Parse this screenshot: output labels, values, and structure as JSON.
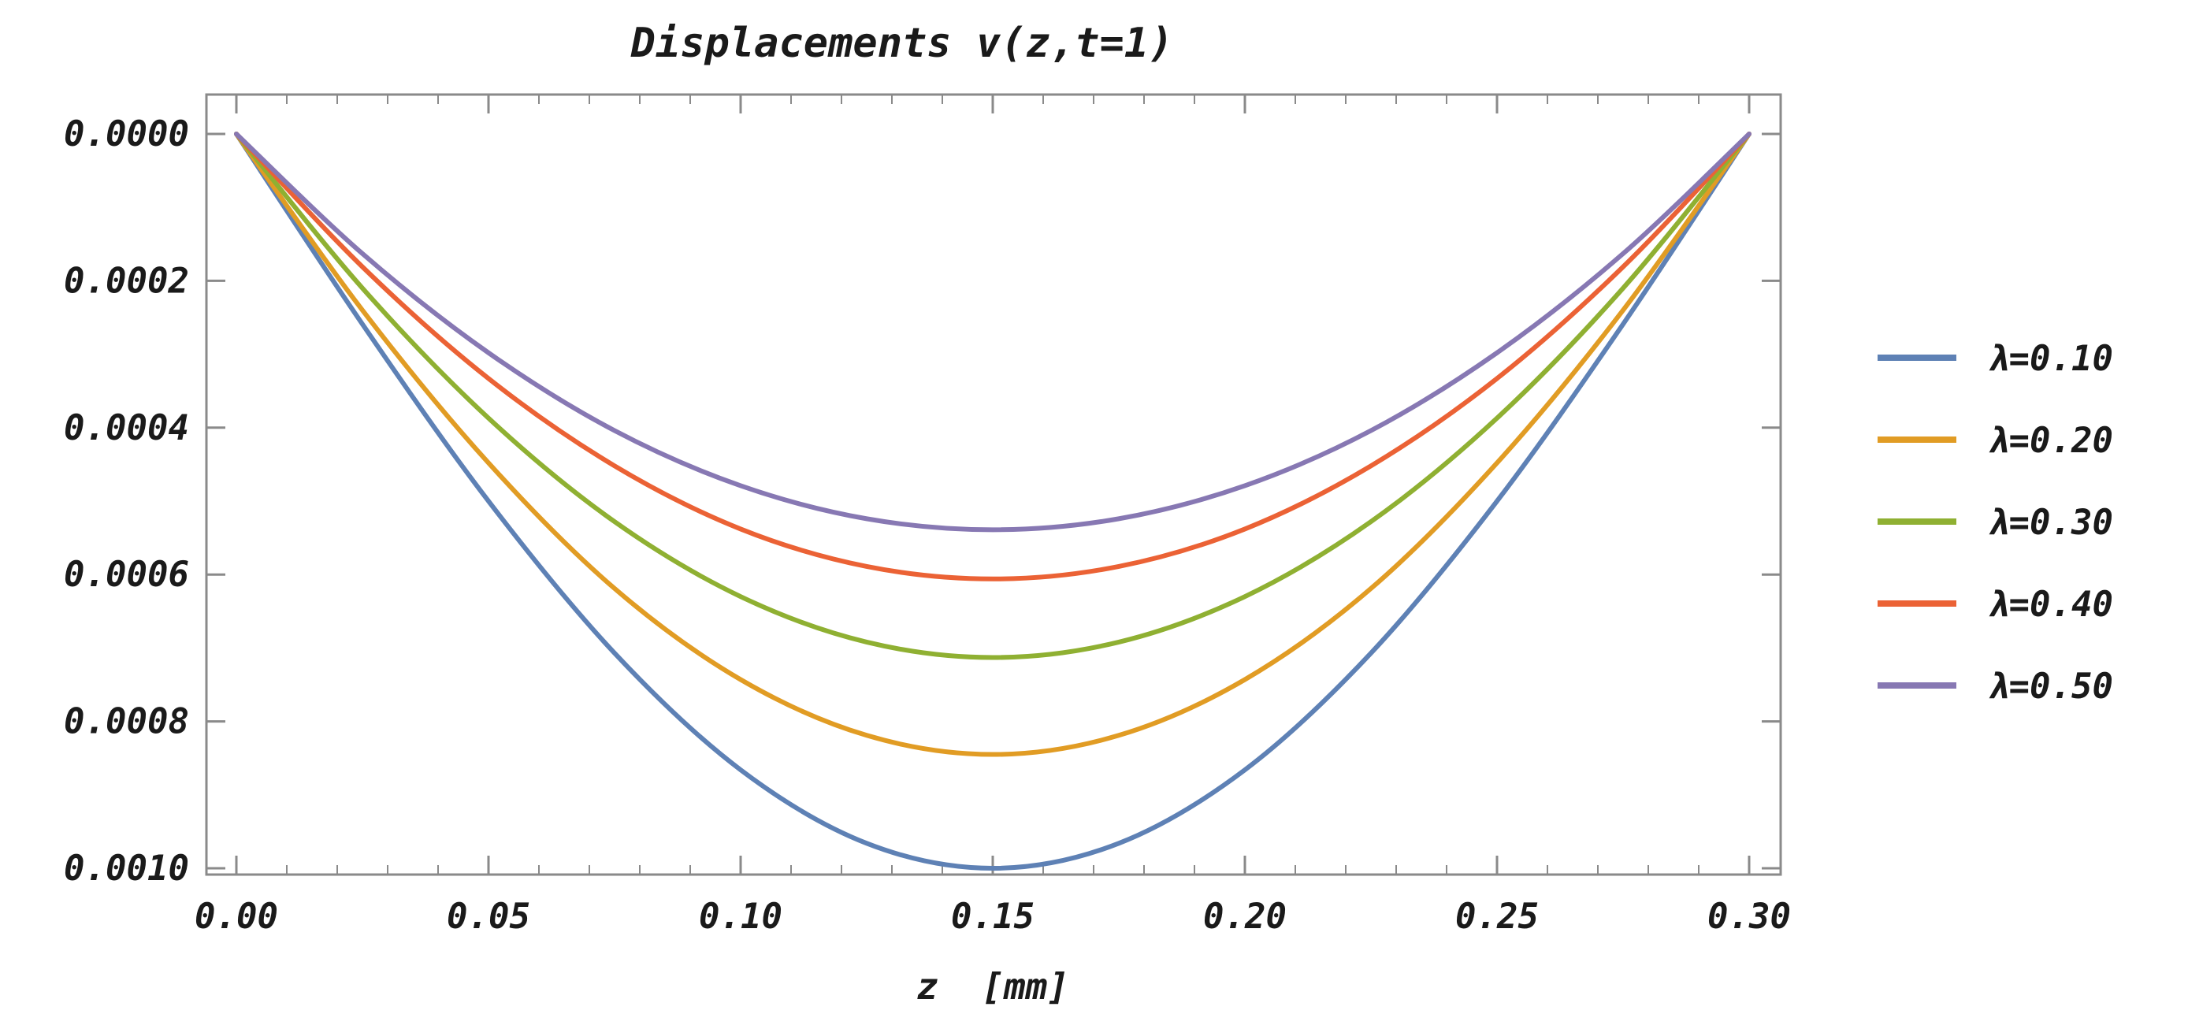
{
  "chart_data": {
    "type": "line",
    "title": "Displacements v(z,t=1)",
    "xlabel": "z  [mm]",
    "ylabel": "",
    "xlim": [
      0.0,
      0.3
    ],
    "ylim": [
      0.0,
      0.001
    ],
    "y_reversed": true,
    "grid": false,
    "legend_position": "right",
    "x_ticks": [
      "0.00",
      "0.05",
      "0.10",
      "0.15",
      "0.20",
      "0.25",
      "0.30"
    ],
    "y_ticks": [
      "0.0000",
      "0.0002",
      "0.0004",
      "0.0006",
      "0.0008",
      "0.0010"
    ],
    "x": [
      0.0,
      0.025,
      0.05,
      0.075,
      0.1,
      0.125,
      0.15,
      0.175,
      0.2,
      0.225,
      0.25,
      0.275,
      0.3
    ],
    "series": [
      {
        "name": "λ=0.10",
        "color": "#5E81B5",
        "values": [
          0.0,
          0.000259,
          0.0005,
          0.000707,
          0.000866,
          0.000966,
          0.001,
          0.000966,
          0.000866,
          0.000707,
          0.0005,
          0.000259,
          0.0
        ]
      },
      {
        "name": "λ=0.20",
        "color": "#E19C24",
        "values": [
          0.0,
          0.00024,
          0.000448,
          0.000619,
          0.000743,
          0.000819,
          0.000845,
          0.000819,
          0.000743,
          0.000619,
          0.000448,
          0.00024,
          0.0
        ]
      },
      {
        "name": "λ=0.30",
        "color": "#8FB032",
        "values": [
          0.0,
          0.00021,
          0.000387,
          0.000528,
          0.00063,
          0.000692,
          0.000713,
          0.000692,
          0.00063,
          0.000528,
          0.000387,
          0.00021,
          0.0
        ]
      },
      {
        "name": "λ=0.40",
        "color": "#EB6235",
        "values": [
          0.0,
          0.000181,
          0.000333,
          0.000452,
          0.000538,
          0.000589,
          0.000606,
          0.000589,
          0.000538,
          0.000452,
          0.000333,
          0.000181,
          0.0
        ]
      },
      {
        "name": "λ=0.50",
        "color": "#8778B3",
        "values": [
          0.0,
          0.000163,
          0.000298,
          0.000404,
          0.000479,
          0.000524,
          0.000539,
          0.000524,
          0.000479,
          0.000404,
          0.000298,
          0.000163,
          0.0
        ]
      }
    ]
  }
}
